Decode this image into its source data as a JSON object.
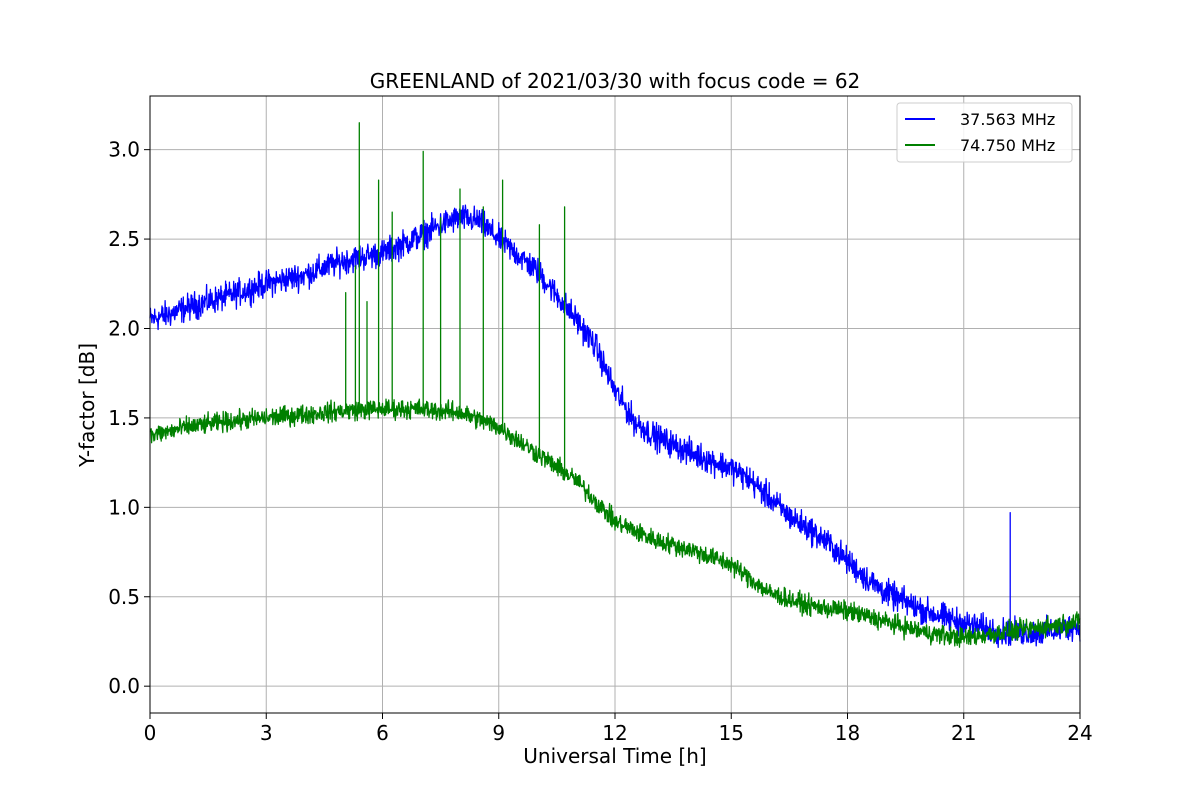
{
  "chart_data": {
    "type": "line",
    "title": "GREENLAND of 2021/03/30 with focus code = 62",
    "xlabel": "Universal Time [h]",
    "ylabel": "Y-factor [dB]",
    "xlim": [
      0,
      24
    ],
    "ylim": [
      -0.15,
      3.3
    ],
    "xticks": [
      0,
      3,
      6,
      9,
      12,
      15,
      18,
      21,
      24
    ],
    "yticks": [
      0.0,
      0.5,
      1.0,
      1.5,
      2.0,
      2.5,
      3.0
    ],
    "xtick_labels": [
      "0",
      "3",
      "6",
      "9",
      "12",
      "15",
      "18",
      "21",
      "24"
    ],
    "ytick_labels": [
      "0.0",
      "0.5",
      "1.0",
      "1.5",
      "2.0",
      "2.5",
      "3.0"
    ],
    "grid": true,
    "legend_position": "upper right",
    "series": [
      {
        "name": "37.563 MHz",
        "color": "#0000ff",
        "noise_amplitude": 0.11,
        "x": [
          0,
          0.5,
          1,
          1.5,
          2,
          3,
          4,
          5,
          6,
          7,
          7.5,
          8,
          8.5,
          9,
          10,
          11,
          11.5,
          12,
          12.5,
          13,
          14,
          15,
          15.5,
          16,
          16.5,
          17,
          17.5,
          18,
          18.5,
          19,
          20,
          21,
          22,
          23,
          24
        ],
        "y": [
          2.05,
          2.08,
          2.12,
          2.15,
          2.18,
          2.25,
          2.3,
          2.38,
          2.42,
          2.52,
          2.58,
          2.62,
          2.6,
          2.5,
          2.32,
          2.05,
          1.9,
          1.65,
          1.48,
          1.4,
          1.3,
          1.22,
          1.15,
          1.05,
          0.95,
          0.88,
          0.8,
          0.7,
          0.6,
          0.52,
          0.42,
          0.35,
          0.3,
          0.3,
          0.34
        ]
      },
      {
        "name": "74.750 MHz",
        "color": "#008000",
        "noise_amplitude": 0.08,
        "x": [
          0,
          1,
          2,
          3,
          4,
          5,
          6,
          7,
          8,
          9,
          10,
          11,
          12,
          13,
          14,
          15,
          16,
          17,
          18,
          19,
          20,
          21,
          22,
          23,
          24
        ],
        "y": [
          1.4,
          1.45,
          1.48,
          1.5,
          1.52,
          1.54,
          1.55,
          1.55,
          1.53,
          1.45,
          1.3,
          1.15,
          0.92,
          0.82,
          0.76,
          0.68,
          0.52,
          0.45,
          0.42,
          0.36,
          0.3,
          0.27,
          0.3,
          0.33,
          0.36
        ]
      }
    ],
    "spikes": [
      {
        "series": "74.750 MHz",
        "x": 5.05,
        "peak": 2.2
      },
      {
        "series": "74.750 MHz",
        "x": 5.3,
        "peak": 2.35
      },
      {
        "series": "74.750 MHz",
        "x": 5.4,
        "peak": 3.15
      },
      {
        "series": "74.750 MHz",
        "x": 5.6,
        "peak": 2.15
      },
      {
        "series": "74.750 MHz",
        "x": 5.9,
        "peak": 2.83
      },
      {
        "series": "74.750 MHz",
        "x": 6.25,
        "peak": 2.65
      },
      {
        "series": "74.750 MHz",
        "x": 7.05,
        "peak": 2.99
      },
      {
        "series": "74.750 MHz",
        "x": 7.5,
        "peak": 2.62
      },
      {
        "series": "74.750 MHz",
        "x": 8.0,
        "peak": 2.78
      },
      {
        "series": "74.750 MHz",
        "x": 8.6,
        "peak": 2.68
      },
      {
        "series": "74.750 MHz",
        "x": 9.1,
        "peak": 2.83
      },
      {
        "series": "74.750 MHz",
        "x": 10.05,
        "peak": 2.58
      },
      {
        "series": "74.750 MHz",
        "x": 10.7,
        "peak": 2.68
      },
      {
        "series": "37.563 MHz",
        "x": 22.2,
        "peak": 0.97
      }
    ]
  }
}
